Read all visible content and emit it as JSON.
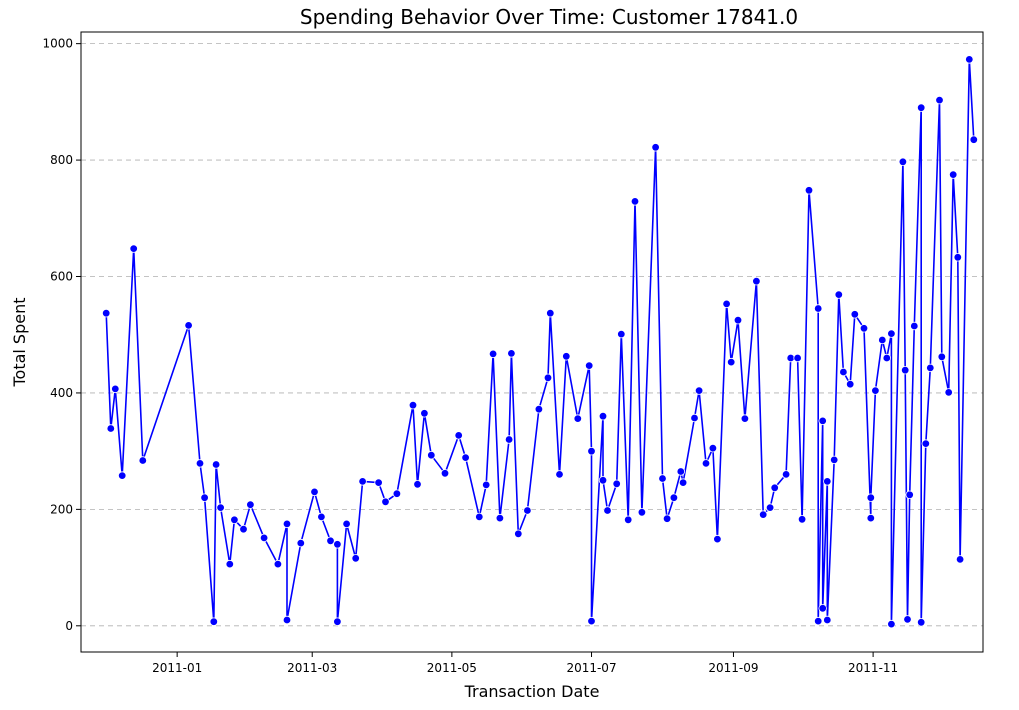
{
  "chart_data": {
    "type": "line",
    "title": "Spending Behavior Over Time: Customer 17841.0",
    "xlabel": "Transaction Date",
    "ylabel": "Total Spent",
    "ylim": [
      -45,
      1020
    ],
    "xlim": [
      "2010-11-20",
      "2011-12-19"
    ],
    "x_ticks": [
      {
        "date": "2011-01-01",
        "label": "2011-01"
      },
      {
        "date": "2011-03-01",
        "label": "2011-03"
      },
      {
        "date": "2011-05-01",
        "label": "2011-05"
      },
      {
        "date": "2011-07-01",
        "label": "2011-07"
      },
      {
        "date": "2011-09-01",
        "label": "2011-09"
      },
      {
        "date": "2011-11-01",
        "label": "2011-11"
      }
    ],
    "y_ticks": [
      0,
      200,
      400,
      600,
      800,
      1000
    ],
    "grid": "horizontal-dashed",
    "line_color": "#0000ff",
    "marker_color": "#0000ff",
    "series": [
      {
        "points": [
          [
            "2010-12-01",
            537
          ],
          [
            "2010-12-03",
            339
          ],
          [
            "2010-12-05",
            407
          ],
          [
            "2010-12-08",
            258
          ],
          [
            "2010-12-13",
            648
          ],
          [
            "2010-12-17",
            284
          ],
          [
            "2011-01-06",
            516
          ],
          [
            "2011-01-11",
            279
          ],
          [
            "2011-01-13",
            220
          ],
          [
            "2011-01-17",
            7
          ],
          [
            "2011-01-18",
            277
          ],
          [
            "2011-01-20",
            203
          ],
          [
            "2011-01-24",
            106
          ],
          [
            "2011-01-26",
            182
          ],
          [
            "2011-01-30",
            166
          ],
          [
            "2011-02-02",
            208
          ],
          [
            "2011-02-08",
            151
          ],
          [
            "2011-02-14",
            106
          ],
          [
            "2011-02-18",
            175
          ],
          [
            "2011-02-18",
            10
          ],
          [
            "2011-02-24",
            142
          ],
          [
            "2011-03-02",
            230
          ],
          [
            "2011-03-05",
            187
          ],
          [
            "2011-03-09",
            146
          ],
          [
            "2011-03-12",
            140
          ],
          [
            "2011-03-12",
            7
          ],
          [
            "2011-03-16",
            175
          ],
          [
            "2011-03-20",
            116
          ],
          [
            "2011-03-23",
            248
          ],
          [
            "2011-03-30",
            246
          ],
          [
            "2011-04-02",
            213
          ],
          [
            "2011-04-07",
            227
          ],
          [
            "2011-04-14",
            379
          ],
          [
            "2011-04-16",
            243
          ],
          [
            "2011-04-19",
            365
          ],
          [
            "2011-04-22",
            293
          ],
          [
            "2011-04-28",
            262
          ],
          [
            "2011-05-04",
            327
          ],
          [
            "2011-05-07",
            289
          ],
          [
            "2011-05-13",
            187
          ],
          [
            "2011-05-16",
            242
          ],
          [
            "2011-05-19",
            467
          ],
          [
            "2011-05-22",
            185
          ],
          [
            "2011-05-26",
            320
          ],
          [
            "2011-05-27",
            468
          ],
          [
            "2011-05-30",
            158
          ],
          [
            "2011-06-03",
            198
          ],
          [
            "2011-06-08",
            372
          ],
          [
            "2011-06-12",
            426
          ],
          [
            "2011-06-13",
            537
          ],
          [
            "2011-06-17",
            260
          ],
          [
            "2011-06-20",
            463
          ],
          [
            "2011-06-25",
            356
          ],
          [
            "2011-06-30",
            447
          ],
          [
            "2011-07-01",
            300
          ],
          [
            "2011-07-01",
            8
          ],
          [
            "2011-07-06",
            360
          ],
          [
            "2011-07-06",
            250
          ],
          [
            "2011-07-08",
            198
          ],
          [
            "2011-07-12",
            244
          ],
          [
            "2011-07-14",
            501
          ],
          [
            "2011-07-17",
            182
          ],
          [
            "2011-07-20",
            729
          ],
          [
            "2011-07-23",
            195
          ],
          [
            "2011-07-29",
            822
          ],
          [
            "2011-08-01",
            253
          ],
          [
            "2011-08-03",
            184
          ],
          [
            "2011-08-06",
            220
          ],
          [
            "2011-08-09",
            265
          ],
          [
            "2011-08-10",
            246
          ],
          [
            "2011-08-15",
            357
          ],
          [
            "2011-08-17",
            404
          ],
          [
            "2011-08-20",
            279
          ],
          [
            "2011-08-23",
            305
          ],
          [
            "2011-08-25",
            149
          ],
          [
            "2011-08-29",
            553
          ],
          [
            "2011-08-31",
            453
          ],
          [
            "2011-09-03",
            525
          ],
          [
            "2011-09-06",
            356
          ],
          [
            "2011-09-11",
            592
          ],
          [
            "2011-09-14",
            191
          ],
          [
            "2011-09-17",
            203
          ],
          [
            "2011-09-19",
            237
          ],
          [
            "2011-09-24",
            260
          ],
          [
            "2011-09-26",
            460
          ],
          [
            "2011-09-29",
            460
          ],
          [
            "2011-10-01",
            183
          ],
          [
            "2011-10-04",
            748
          ],
          [
            "2011-10-08",
            545
          ],
          [
            "2011-10-08",
            8
          ],
          [
            "2011-10-10",
            352
          ],
          [
            "2011-10-10",
            30
          ],
          [
            "2011-10-12",
            248
          ],
          [
            "2011-10-12",
            10
          ],
          [
            "2011-10-15",
            285
          ],
          [
            "2011-10-17",
            569
          ],
          [
            "2011-10-19",
            436
          ],
          [
            "2011-10-22",
            415
          ],
          [
            "2011-10-24",
            535
          ],
          [
            "2011-10-28",
            511
          ],
          [
            "2011-10-31",
            185
          ],
          [
            "2011-10-31",
            220
          ],
          [
            "2011-11-02",
            404
          ],
          [
            "2011-11-05",
            491
          ],
          [
            "2011-11-07",
            460
          ],
          [
            "2011-11-09",
            502
          ],
          [
            "2011-11-09",
            3
          ],
          [
            "2011-11-14",
            797
          ],
          [
            "2011-11-15",
            439
          ],
          [
            "2011-11-16",
            11
          ],
          [
            "2011-11-17",
            225
          ],
          [
            "2011-11-19",
            515
          ],
          [
            "2011-11-22",
            890
          ],
          [
            "2011-11-22",
            6
          ],
          [
            "2011-11-24",
            313
          ],
          [
            "2011-11-26",
            443
          ],
          [
            "2011-11-30",
            903
          ],
          [
            "2011-12-01",
            462
          ],
          [
            "2011-12-04",
            401
          ],
          [
            "2011-12-06",
            775
          ],
          [
            "2011-12-08",
            633
          ],
          [
            "2011-12-09",
            114
          ],
          [
            "2011-12-13",
            973
          ],
          [
            "2011-12-15",
            835
          ]
        ]
      }
    ]
  }
}
